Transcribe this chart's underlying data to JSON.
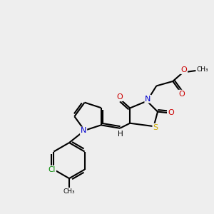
{
  "background_color": "#eeeeee",
  "atom_colors": {
    "C": "#000000",
    "H": "#000000",
    "N": "#0000cc",
    "O": "#cc0000",
    "S": "#ccaa00",
    "Cl": "#008800"
  },
  "bond_color": "#000000",
  "bond_width": 1.5
}
